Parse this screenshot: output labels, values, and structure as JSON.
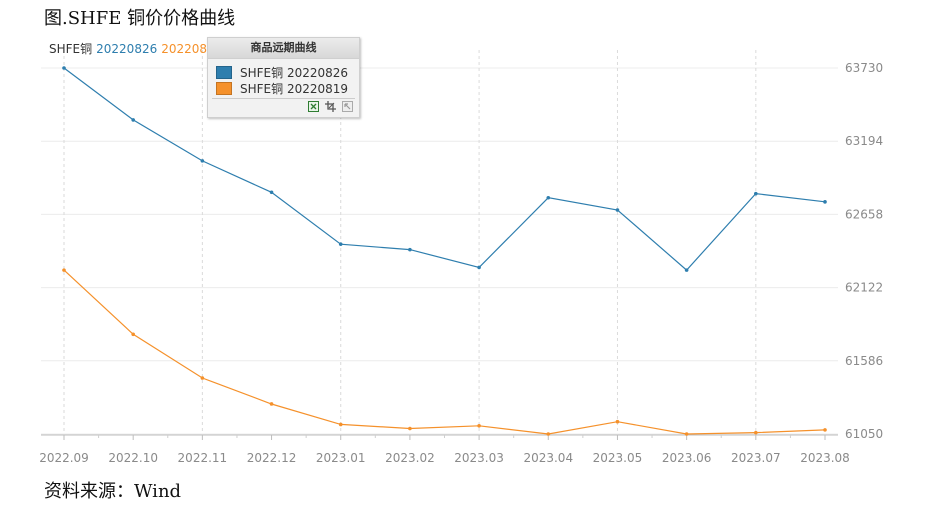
{
  "title": "图.SHFE 铜价价格曲线",
  "source": "资料来源：Wind",
  "legend_top": {
    "prefix": "SHFE铜",
    "series_a": "20220826",
    "series_b": "20220819"
  },
  "popup": {
    "title": "商品远期曲线",
    "items": [
      {
        "label": "SHFE铜 20220826",
        "color": "#2e7eae"
      },
      {
        "label": "SHFE铜 20220819",
        "color": "#f5912b"
      }
    ],
    "icons": [
      "excel-icon",
      "crop-icon",
      "export-icon"
    ]
  },
  "chart_data": {
    "type": "line",
    "categories": [
      "2022.09",
      "2022.10",
      "2022.11",
      "2022.12",
      "2023.01",
      "2023.02",
      "2023.03",
      "2023.04",
      "2023.05",
      "2023.06",
      "2023.07",
      "2023.08"
    ],
    "ylim": [
      61050,
      63730
    ],
    "yticks": [
      61050,
      61586,
      62122,
      62658,
      63194,
      63730
    ],
    "grid": true,
    "legend": "top-left",
    "series": [
      {
        "name": "SHFE铜 20220826",
        "color": "#2e7eae",
        "values": [
          63730,
          63350,
          63050,
          62820,
          62440,
          62400,
          62270,
          62780,
          62690,
          62250,
          62810,
          62750
        ]
      },
      {
        "name": "SHFE铜 20220819",
        "color": "#f5912b",
        "values": [
          62250,
          61780,
          61460,
          61270,
          61120,
          61090,
          61110,
          61050,
          61140,
          61050,
          61060,
          61080
        ]
      }
    ]
  }
}
